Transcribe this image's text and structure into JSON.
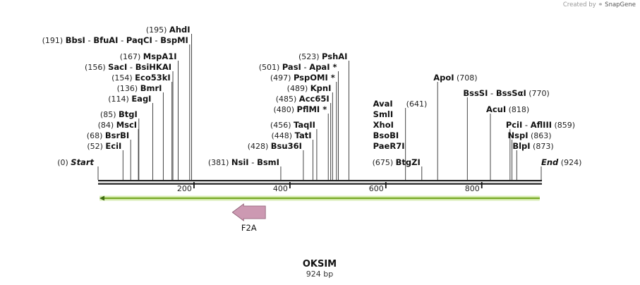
{
  "credit": {
    "prefix": "Created by",
    "brand": "SnapGene",
    "icon": "snapgene-logo-icon"
  },
  "sequence": {
    "name": "OKSIM",
    "length_label": "924 bp",
    "length": 924
  },
  "ends": {
    "start_label": "Start",
    "start_pos": "(0)",
    "end_label": "End",
    "end_pos": "(924)"
  },
  "ruler": {
    "ticks": [
      {
        "value": 200,
        "label": "200"
      },
      {
        "value": 400,
        "label": "400"
      },
      {
        "value": 600,
        "label": "600"
      },
      {
        "value": 800,
        "label": "800"
      }
    ]
  },
  "feature": {
    "name": "F2A",
    "start": 280,
    "end": 349,
    "direction": "reverse",
    "color": "#cc99b2"
  },
  "orf": {
    "start": 3,
    "end": 921,
    "direction": "reverse",
    "color": "#99cc33"
  },
  "sites": [
    {
      "pos": 52,
      "pos_label": "(52)",
      "names": [
        "EciI"
      ]
    },
    {
      "pos": 68,
      "pos_label": "(68)",
      "names": [
        "BsrBI"
      ]
    },
    {
      "pos": 84,
      "pos_label": "(84)",
      "names": [
        "MscI"
      ]
    },
    {
      "pos": 85,
      "pos_label": "(85)",
      "names": [
        "BtgI"
      ]
    },
    {
      "pos": 114,
      "pos_label": "(114)",
      "names": [
        "EagI"
      ]
    },
    {
      "pos": 136,
      "pos_label": "(136)",
      "names": [
        "BmrI"
      ]
    },
    {
      "pos": 154,
      "pos_label": "(154)",
      "names": [
        "Eco53kI"
      ]
    },
    {
      "pos": 156,
      "pos_label": "(156)",
      "names": [
        "SacI",
        "BsiHKAI"
      ]
    },
    {
      "pos": 167,
      "pos_label": "(167)",
      "names": [
        "MspA1I"
      ]
    },
    {
      "pos": 191,
      "pos_label": "(191)",
      "names": [
        "BbsI",
        "BfuAI",
        "PaqCI",
        "BspMI"
      ]
    },
    {
      "pos": 195,
      "pos_label": "(195)",
      "names": [
        "AhdI"
      ]
    },
    {
      "pos": 381,
      "pos_label": "(381)",
      "names": [
        "NsiI",
        "BsmI"
      ]
    },
    {
      "pos": 428,
      "pos_label": "(428)",
      "names": [
        "Bsu36I"
      ]
    },
    {
      "pos": 448,
      "pos_label": "(448)",
      "names": [
        "TatI"
      ]
    },
    {
      "pos": 456,
      "pos_label": "(456)",
      "names": [
        "TaqII"
      ]
    },
    {
      "pos": 480,
      "pos_label": "(480)",
      "names": [
        "PflMI *"
      ]
    },
    {
      "pos": 485,
      "pos_label": "(485)",
      "names": [
        "Acc65I"
      ]
    },
    {
      "pos": 489,
      "pos_label": "(489)",
      "names": [
        "KpnI"
      ]
    },
    {
      "pos": 497,
      "pos_label": "(497)",
      "names": [
        "PspOMI *"
      ]
    },
    {
      "pos": 501,
      "pos_label": "(501)",
      "names": [
        "PasI",
        "ApaI *"
      ]
    },
    {
      "pos": 523,
      "pos_label": "(523)",
      "names": [
        "PshAI"
      ]
    },
    {
      "pos": 641,
      "pos_label": "(641)",
      "names": [
        "PaeR7I",
        "BsoBI",
        "XhoI",
        "SmlI",
        "AvaI"
      ]
    },
    {
      "pos": 675,
      "pos_label": "(675)",
      "names": [
        "BtgZI"
      ]
    },
    {
      "pos": 708,
      "pos_label": "(708)",
      "names": [
        "ApoI"
      ]
    },
    {
      "pos": 770,
      "pos_label": "(770)",
      "names": [
        "BssSI",
        "BssSαI"
      ]
    },
    {
      "pos": 818,
      "pos_label": "(818)",
      "names": [
        "AcuI"
      ]
    },
    {
      "pos": 859,
      "pos_label": "(859)",
      "names": [
        "PciI",
        "AflIII"
      ]
    },
    {
      "pos": 863,
      "pos_label": "(863)",
      "names": [
        "NspI"
      ]
    },
    {
      "pos": 873,
      "pos_label": "(873)",
      "names": [
        "BlpI"
      ]
    }
  ]
}
